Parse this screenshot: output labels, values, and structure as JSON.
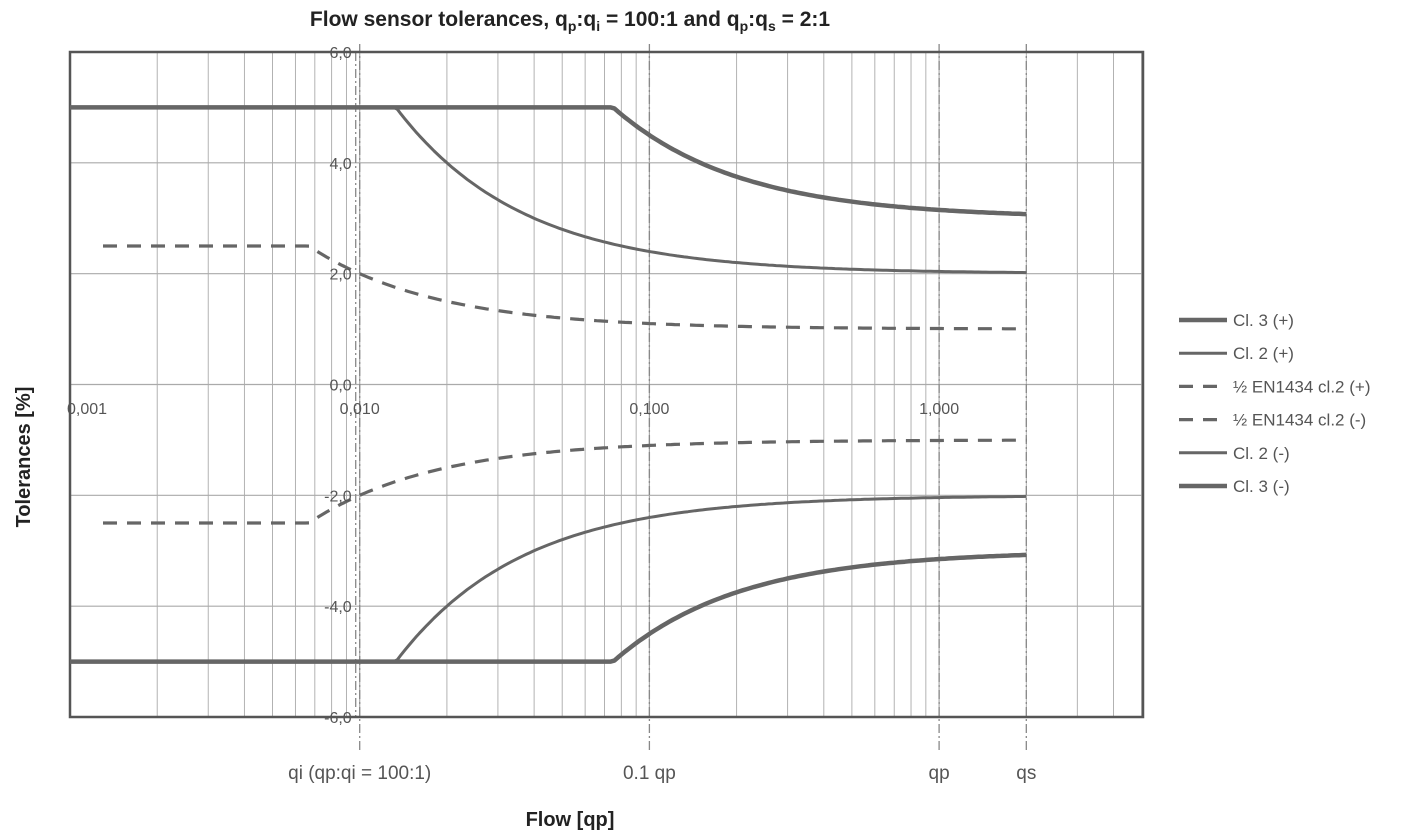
{
  "chart_data": {
    "type": "line",
    "title": {
      "main": "Flow sensor tolerances, q",
      "sub1": "p",
      "sep1": ":q",
      "sub2": "i",
      "mid": " = 100:1 and q",
      "sub3": "p",
      "sep2": ":q",
      "sub4": "s",
      "end": " = 2:1"
    },
    "xlabel": "Flow [qp]",
    "ylabel": "Tolerances [%]",
    "x_scale": "log",
    "xlim": [
      0.001,
      20
    ],
    "ylim": [
      -6,
      6
    ],
    "grid": true,
    "y_ticks": [
      {
        "value": 6,
        "label": "6,0"
      },
      {
        "value": 4,
        "label": "4,0"
      },
      {
        "value": 2,
        "label": "2,0"
      },
      {
        "value": 0,
        "label": "0,0"
      },
      {
        "value": -2,
        "label": "-2,0"
      },
      {
        "value": -4,
        "label": "-4,0"
      },
      {
        "value": -6,
        "label": "-6,0"
      }
    ],
    "x_ticks": [
      {
        "value": 0.001,
        "label": "0,001"
      },
      {
        "value": 0.01,
        "label": "0,010"
      },
      {
        "value": 0.1,
        "label": "0,100"
      },
      {
        "value": 1,
        "label": "1,000"
      }
    ],
    "markers": [
      {
        "value": 0.01,
        "label": "qi (qp:qi = 100:1)"
      },
      {
        "value": 0.1,
        "label": "0.1 qp"
      },
      {
        "value": 1,
        "label": "qp"
      },
      {
        "value": 2,
        "label": "qs"
      }
    ],
    "series": [
      {
        "name": "Cl. 3 (+)",
        "style": "thick",
        "sign": 1,
        "a": 3,
        "b": 0.05,
        "cap": 5,
        "x_start": 0.001,
        "x_end": 2
      },
      {
        "name": "Cl. 2 (+)",
        "style": "solid",
        "sign": 1,
        "a": 2,
        "b": 0.02,
        "cap": 5,
        "x_start": 0.001,
        "x_end": 2
      },
      {
        "name": "½ EN1434 cl.2 (+)",
        "style": "dashed",
        "sign": 1,
        "a": 1,
        "b": 0.01,
        "cap": 2.5,
        "x_start": 0.0013,
        "x_end": 2
      },
      {
        "name": "½ EN1434 cl.2 (-)",
        "style": "dashed",
        "sign": -1,
        "a": 1,
        "b": 0.01,
        "cap": 2.5,
        "x_start": 0.0013,
        "x_end": 2
      },
      {
        "name": "Cl. 2 (-)",
        "style": "solid",
        "sign": -1,
        "a": 2,
        "b": 0.02,
        "cap": 5,
        "x_start": 0.001,
        "x_end": 2
      },
      {
        "name": "Cl. 3 (-)",
        "style": "thick",
        "sign": -1,
        "a": 3,
        "b": 0.05,
        "cap": 5,
        "x_start": 0.001,
        "x_end": 2
      }
    ],
    "legend_position": "right",
    "colors": {
      "line": "#666666",
      "grid": "#aaaaaa",
      "frame": "#555555",
      "marker": "#888888"
    }
  }
}
